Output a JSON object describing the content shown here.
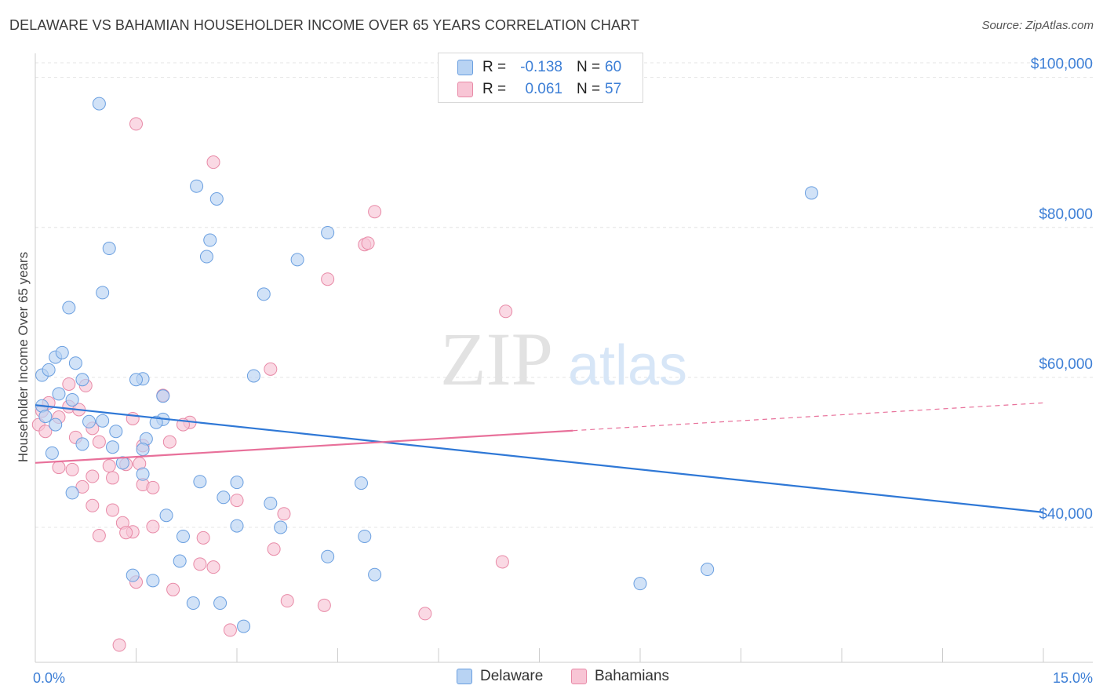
{
  "title": "DELAWARE VS BAHAMIAN HOUSEHOLDER INCOME OVER 65 YEARS CORRELATION CHART",
  "source": "Source: ZipAtlas.com",
  "watermark": {
    "zip": "ZIP",
    "atlas": "atlas"
  },
  "colors": {
    "delaware_fill": "#b8d3f3",
    "delaware_stroke": "#6a9fe0",
    "delaware_line": "#2f78d6",
    "bahamians_fill": "#f8c5d5",
    "bahamians_stroke": "#e88aa7",
    "bahamians_line": "#e8709a",
    "tick_text": "#3d7fd6",
    "grid": "#e4e4e4"
  },
  "legend": {
    "rows": [
      {
        "r_label": "R =",
        "r_value": "-0.138",
        "n_label": "N =",
        "n_value": "60"
      },
      {
        "r_label": "R =",
        "r_value": "0.061",
        "n_label": "N =",
        "n_value": "57"
      }
    ]
  },
  "chart_data": {
    "type": "scatter",
    "title": "DELAWARE VS BAHAMIAN HOUSEHOLDER INCOME OVER 65 YEARS CORRELATION CHART",
    "xlabel": "",
    "ylabel": "Householder Income Over 65 years",
    "xlim": [
      0,
      15
    ],
    "ylim": [
      22000,
      103000
    ],
    "x_tick_labels": [
      "0.0%",
      "15.0%"
    ],
    "y_ticks": [
      40000,
      60000,
      80000,
      100000
    ],
    "y_tick_labels": [
      "$40,000",
      "$60,000",
      "$80,000",
      "$100,000"
    ],
    "grid": true,
    "legend_position": "bottom-center",
    "series": [
      {
        "name": "Delaware",
        "trend": {
          "x": [
            0.0,
            15.0
          ],
          "y": [
            56300,
            42000
          ],
          "dashed_from": null
        },
        "points": [
          [
            0.1,
            60300
          ],
          [
            0.2,
            61000
          ],
          [
            0.3,
            62700
          ],
          [
            0.4,
            63300
          ],
          [
            0.5,
            69300
          ],
          [
            0.6,
            61900
          ],
          [
            0.7,
            59700
          ],
          [
            0.35,
            57800
          ],
          [
            0.55,
            57000
          ],
          [
            0.1,
            56200
          ],
          [
            0.95,
            96500
          ],
          [
            1.1,
            77200
          ],
          [
            1.0,
            71300
          ],
          [
            0.3,
            53700
          ],
          [
            0.8,
            54100
          ],
          [
            0.7,
            51100
          ],
          [
            1.2,
            52800
          ],
          [
            1.15,
            50700
          ],
          [
            1.3,
            48600
          ],
          [
            0.55,
            44600
          ],
          [
            0.25,
            49900
          ],
          [
            1.6,
            59800
          ],
          [
            1.5,
            59700
          ],
          [
            1.9,
            57500
          ],
          [
            1.9,
            54400
          ],
          [
            1.8,
            54000
          ],
          [
            1.65,
            51800
          ],
          [
            1.6,
            50400
          ],
          [
            1.6,
            47100
          ],
          [
            2.4,
            85500
          ],
          [
            2.7,
            83800
          ],
          [
            2.6,
            78300
          ],
          [
            2.55,
            76100
          ],
          [
            3.4,
            71100
          ],
          [
            3.25,
            60200
          ],
          [
            3.9,
            75700
          ],
          [
            4.35,
            79300
          ],
          [
            2.45,
            46100
          ],
          [
            3.0,
            46000
          ],
          [
            2.8,
            44000
          ],
          [
            3.5,
            43200
          ],
          [
            4.85,
            45900
          ],
          [
            1.95,
            41600
          ],
          [
            2.2,
            38800
          ],
          [
            3.0,
            40200
          ],
          [
            3.65,
            40000
          ],
          [
            4.9,
            38800
          ],
          [
            2.15,
            35500
          ],
          [
            4.35,
            36100
          ],
          [
            1.45,
            33600
          ],
          [
            1.75,
            32900
          ],
          [
            2.35,
            29900
          ],
          [
            2.75,
            29900
          ],
          [
            3.1,
            26800
          ],
          [
            5.05,
            33700
          ],
          [
            9.0,
            32500
          ],
          [
            10.0,
            34400
          ],
          [
            11.55,
            84600
          ],
          [
            0.15,
            54800
          ],
          [
            1.0,
            54200
          ]
        ]
      },
      {
        "name": "Bahamians",
        "trend": {
          "x": [
            0.0,
            8.0,
            15.0
          ],
          "y": [
            48600,
            52900,
            56600
          ],
          "dashed_from": 8.0
        },
        "points": [
          [
            0.05,
            53700
          ],
          [
            0.2,
            56600
          ],
          [
            0.1,
            55500
          ],
          [
            0.5,
            56100
          ],
          [
            0.65,
            55700
          ],
          [
            0.75,
            58900
          ],
          [
            0.35,
            54700
          ],
          [
            0.85,
            53200
          ],
          [
            0.95,
            51400
          ],
          [
            1.1,
            48200
          ],
          [
            0.35,
            48000
          ],
          [
            0.55,
            47700
          ],
          [
            0.7,
            45400
          ],
          [
            0.85,
            46800
          ],
          [
            1.15,
            46600
          ],
          [
            1.35,
            48400
          ],
          [
            1.6,
            50900
          ],
          [
            1.55,
            48500
          ],
          [
            1.6,
            45700
          ],
          [
            1.75,
            45300
          ],
          [
            0.85,
            42900
          ],
          [
            1.15,
            42300
          ],
          [
            1.3,
            40600
          ],
          [
            1.45,
            39400
          ],
          [
            0.95,
            38900
          ],
          [
            1.35,
            39300
          ],
          [
            1.75,
            40100
          ],
          [
            2.0,
            51400
          ],
          [
            1.9,
            57600
          ],
          [
            2.3,
            54000
          ],
          [
            2.05,
            31700
          ],
          [
            2.5,
            38600
          ],
          [
            2.45,
            35100
          ],
          [
            2.65,
            34700
          ],
          [
            3.0,
            43600
          ],
          [
            3.55,
            37100
          ],
          [
            3.5,
            61100
          ],
          [
            3.7,
            41800
          ],
          [
            3.75,
            30200
          ],
          [
            4.3,
            29600
          ],
          [
            4.35,
            73100
          ],
          [
            4.9,
            77700
          ],
          [
            4.95,
            77900
          ],
          [
            5.05,
            82100
          ],
          [
            5.8,
            28500
          ],
          [
            7.0,
            68800
          ],
          [
            6.95,
            35400
          ],
          [
            1.5,
            32700
          ],
          [
            1.25,
            24300
          ],
          [
            2.9,
            26300
          ],
          [
            1.5,
            93800
          ],
          [
            2.65,
            88700
          ],
          [
            0.5,
            59100
          ],
          [
            0.6,
            52000
          ],
          [
            1.45,
            54500
          ],
          [
            2.2,
            53700
          ],
          [
            0.15,
            52800
          ]
        ]
      }
    ]
  }
}
